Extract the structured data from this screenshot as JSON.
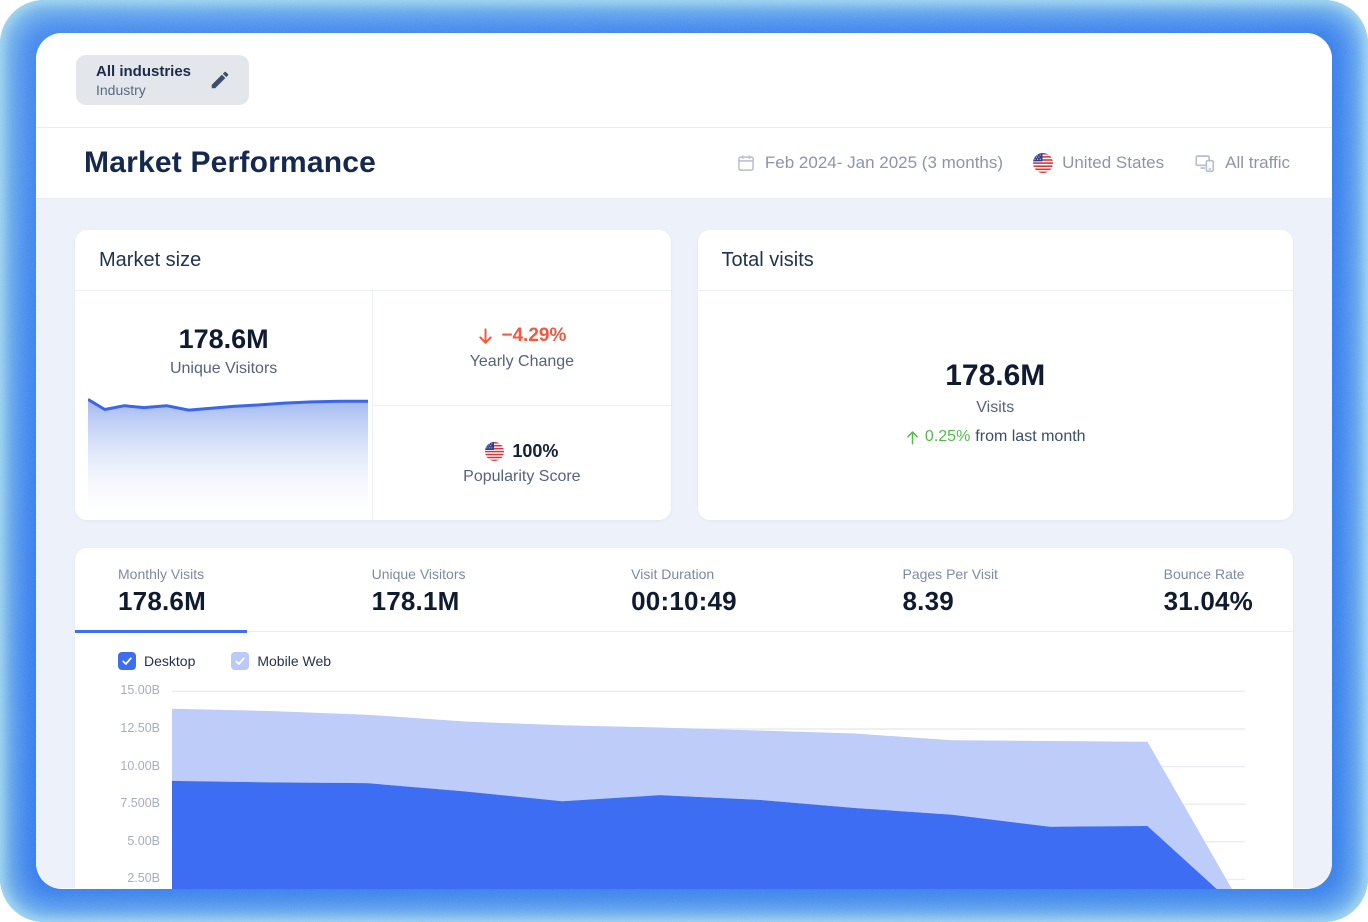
{
  "topbar": {
    "industry_value": "All industries",
    "industry_label": "Industry"
  },
  "header": {
    "title": "Market Performance",
    "date_range": "Feb 2024- Jan 2025 (3 months)",
    "country": "United States",
    "traffic": "All traffic"
  },
  "market_size": {
    "title": "Market size",
    "value": "178.6M",
    "value_label": "Unique Visitors",
    "yearly_change": "−4.29%",
    "yearly_change_label": "Yearly Change",
    "popularity": "100%",
    "popularity_label": "Popularity Score"
  },
  "total_visits": {
    "title": "Total visits",
    "value": "178.6M",
    "value_label": "Visits",
    "delta": "0.25%",
    "delta_suffix": "from last month"
  },
  "metrics_tabs": [
    {
      "label": "Monthly Visits",
      "value": "178.6M",
      "active": true
    },
    {
      "label": "Unique Visitors",
      "value": "178.1M",
      "active": false
    },
    {
      "label": "Visit Duration",
      "value": "00:10:49",
      "active": false
    },
    {
      "label": "Pages Per Visit",
      "value": "8.39",
      "active": false
    },
    {
      "label": "Bounce Rate",
      "value": "31.04%",
      "active": false
    }
  ],
  "legend": [
    {
      "label": "Desktop",
      "checked": true,
      "color": "#3d6df2"
    },
    {
      "label": "Mobile Web",
      "checked": true,
      "color": "#b9c9f8"
    }
  ],
  "chart_data": [
    {
      "type": "area",
      "stacked": true,
      "grid": "horizontal",
      "legend_position": "top-left",
      "x": [
        1,
        2,
        3,
        4,
        5,
        6,
        7,
        8,
        9,
        10,
        11,
        12
      ],
      "x_axis_labels_visible": false,
      "series": [
        {
          "name": "Desktop",
          "color": "#3d6df2",
          "values": [
            9.05,
            8.95,
            8.9,
            8.35,
            7.7,
            8.1,
            7.8,
            7.25,
            6.8,
            6.0,
            6.05,
            0.15
          ]
        },
        {
          "name": "Mobile Web",
          "color": "#bdccf8",
          "values": [
            4.8,
            4.75,
            4.55,
            4.65,
            5.05,
            4.5,
            4.6,
            4.95,
            4.95,
            5.7,
            5.6,
            0.2
          ]
        }
      ],
      "y_unit": "B",
      "y_ticks": [
        "15.00B",
        "12.50B",
        "10.00B",
        "7.500B",
        "5.00B",
        "2.50B"
      ],
      "y_grid_values": [
        15,
        12.5,
        10,
        7.5,
        5,
        2.5
      ],
      "ylim": [
        0,
        16
      ],
      "grid_color": "#e9ecf1"
    },
    {
      "type": "area",
      "name": "unique-visitors-sparkline",
      "unit": "relative",
      "line_color": "#3a65ee",
      "fill_top_color": "#9db5ef",
      "points_rel": [
        [
          0,
          0.05
        ],
        [
          0.06,
          0.13
        ],
        [
          0.13,
          0.1
        ],
        [
          0.2,
          0.115
        ],
        [
          0.28,
          0.1
        ],
        [
          0.36,
          0.135
        ],
        [
          0.44,
          0.12
        ],
        [
          0.52,
          0.105
        ],
        [
          0.6,
          0.095
        ],
        [
          0.7,
          0.08
        ],
        [
          0.8,
          0.07
        ],
        [
          0.9,
          0.065
        ],
        [
          1,
          0.065
        ]
      ]
    }
  ],
  "colors": {
    "frame_blue": "#2e79f2",
    "accent_blue": "#3d6df2",
    "light_blue": "#bdccf8",
    "negative_red": "#f4573f",
    "positive_green": "#50bd49",
    "navy": "#15294e",
    "body_bg": "#edf1fa"
  }
}
